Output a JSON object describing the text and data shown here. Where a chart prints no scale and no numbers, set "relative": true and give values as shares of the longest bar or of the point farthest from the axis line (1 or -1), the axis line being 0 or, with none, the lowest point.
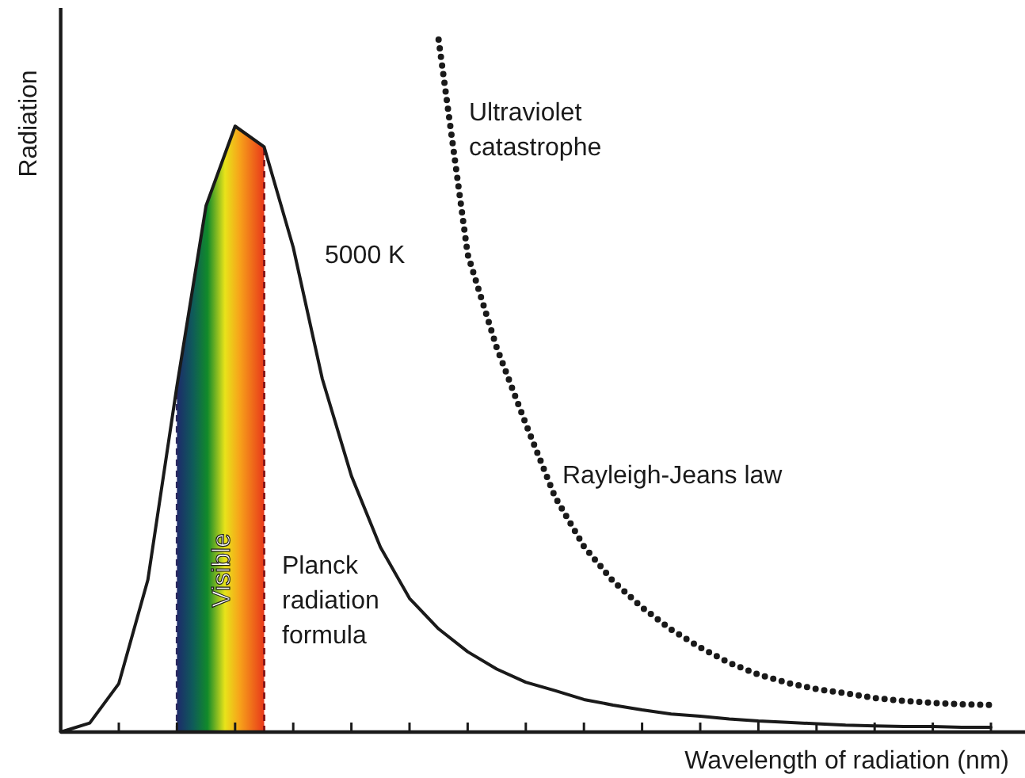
{
  "chart_data": {
    "type": "line",
    "relative": true,
    "xlabel": "Wavelength of radiation (nm)",
    "ylabel": "Radiation",
    "categories": [
      null,
      null,
      null,
      null,
      null,
      null,
      null,
      null,
      null,
      null,
      null,
      null,
      null,
      null,
      null,
      null,
      null,
      null,
      null,
      null,
      null,
      null,
      null,
      null,
      null,
      null,
      null,
      null,
      null,
      null,
      null,
      null,
      null,
      null
    ],
    "marker": "none",
    "series": [
      {
        "name": "5000 K",
        "color": "#1a1a1a",
        "line_style": "solid",
        "values": [
          0,
          0.013,
          0.07,
          0.22,
          0.5,
          0.76,
          0.875,
          0.845,
          0.7,
          0.51,
          0.37,
          0.267,
          0.193,
          0.149,
          0.116,
          0.091,
          0.072,
          0.06,
          0.047,
          0.039,
          0.032,
          0.026,
          0.023,
          0.019,
          0.016,
          0.014,
          0.012,
          0.01,
          0.009,
          0.008,
          0.008,
          0.007,
          0.007,
          null
        ]
      },
      {
        "name": "Rayleigh-Jeans law",
        "color": "#1a1a1a",
        "line_style": "dotted",
        "values": [
          null,
          null,
          null,
          null,
          null,
          null,
          null,
          null,
          null,
          null,
          null,
          null,
          null,
          1,
          0.69,
          0.555,
          0.445,
          0.34,
          0.268,
          0.218,
          0.18,
          0.148,
          0.122,
          0.1,
          0.083,
          0.071,
          0.062,
          0.056,
          0.049,
          0.045,
          0.042,
          0.04,
          0.039,
          null
        ]
      }
    ],
    "annotations": [
      "Visible",
      "Ultraviolet catastrophe",
      "Planck radiation formula"
    ]
  }
}
